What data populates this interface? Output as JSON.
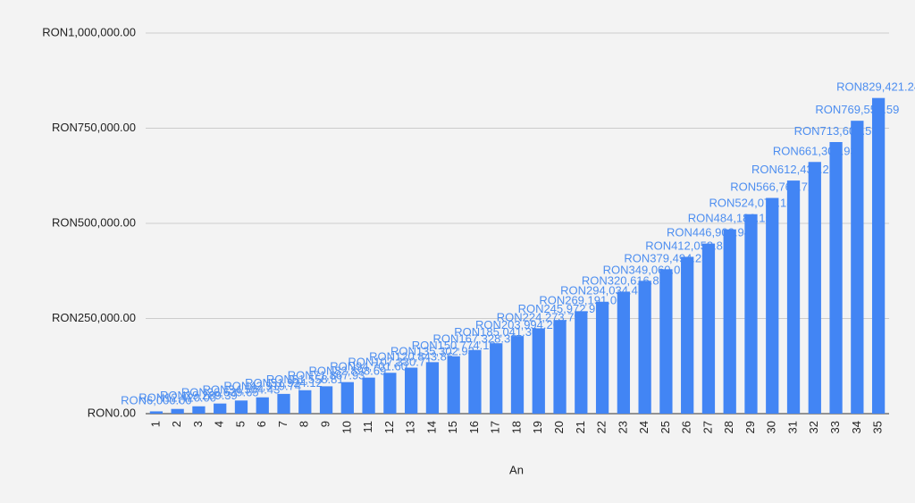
{
  "chart_data": {
    "type": "bar",
    "categories": [
      "1",
      "2",
      "3",
      "4",
      "5",
      "6",
      "7",
      "8",
      "9",
      "10",
      "11",
      "12",
      "13",
      "14",
      "15",
      "16",
      "17",
      "18",
      "19",
      "20",
      "21",
      "22",
      "23",
      "24",
      "25",
      "26",
      "27",
      "28",
      "29",
      "30",
      "31",
      "32",
      "33",
      "34",
      "35"
    ],
    "values": [
      6000.0,
      12420.0,
      19289.39,
      26639.65,
      34504.43,
      42919.74,
      51924.12,
      61558.81,
      71867.93,
      82898.69,
      94701.6,
      107330.71,
      120843.86,
      135302.93,
      150774.13,
      167328.32,
      185041.3,
      203994.2,
      224273.79,
      245972.95,
      269191.06,
      294034.43,
      320616.85,
      349060.02,
      379494.23,
      412058.82,
      446902.94,
      484186.15,
      524079.18,
      566764.72,
      612438.25,
      661308.93,
      713600.55,
      769552.59,
      829421.24
    ],
    "value_labels": [
      "RON6,000.00",
      "RON12,420.00",
      "RON19,289.39",
      "RON26,639.65",
      "RON34,504.43",
      "RON42,919.74",
      "RON51,924.12",
      "RON61,558.81",
      "RON71,867.93",
      "RON82,898.69",
      "RON94,701.60",
      "RON107,330.71",
      "RON120,843.86",
      "RON135,302.93",
      "RON150,774.13",
      "RON167,328.32",
      "RON185,041.30",
      "RON203,994.20",
      "RON224,273.79",
      "RON245,972.95",
      "RON269,191.06",
      "RON294,034.43",
      "RON320,616.85",
      "RON349,060.02",
      "RON379,494.23",
      "RON412,058.82",
      "RON446,902.94",
      "RON484,186.15",
      "RON524,079.18",
      "RON566,764.72",
      "RON612,438.25",
      "RON661,308.93",
      "RON713,600.55",
      "RON769,552.59",
      "RON829,421.24"
    ],
    "color": "#4285f4",
    "x_label": "An",
    "ylim": [
      0,
      1000000
    ],
    "yticks": [
      {
        "value": 0,
        "label": "RON0.00"
      },
      {
        "value": 250000,
        "label": "RON250,000.00"
      },
      {
        "value": 500000,
        "label": "RON500,000.00"
      },
      {
        "value": 750000,
        "label": "RON750,000.00"
      },
      {
        "value": 1000000,
        "label": "RON1,000,000.00"
      }
    ],
    "grid": true
  }
}
